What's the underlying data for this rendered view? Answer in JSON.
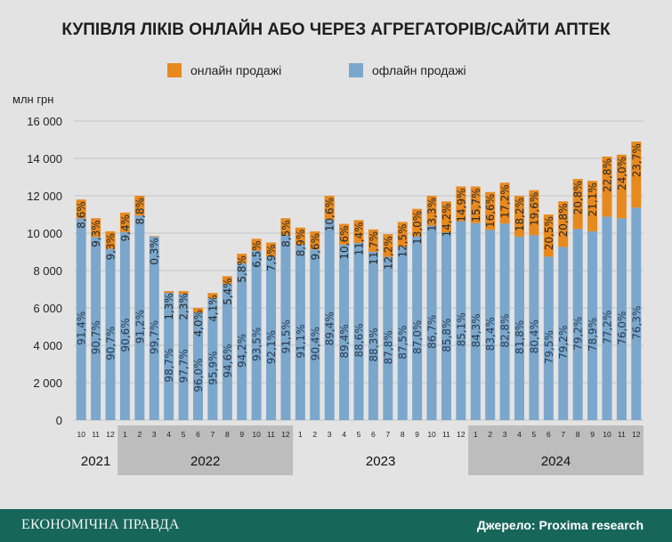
{
  "header": {
    "title": "КУПІВЛЯ ЛІКІВ ОНЛАЙН АБО ЧЕРЕЗ АГРЕГАТОРІВ/САЙТИ АПТЕК"
  },
  "footer": {
    "logo": "ЕКОНОМІЧНА ПРАВДА",
    "source": "Джерело: Proxima research"
  },
  "colors": {
    "online": "#e8891e",
    "offline": "#7ba7cc",
    "band": "#bdbdbd",
    "footer": "#17665a"
  },
  "chart_data": {
    "type": "bar",
    "stacked": true,
    "title": "КУПІВЛЯ ЛІКІВ ОНЛАЙН АБО ЧЕРЕЗ АГРЕГАТОРІВ/САЙТИ АПТЕК",
    "ylabel": "млн грн",
    "ylim": [
      0,
      16000
    ],
    "yticks": [
      0,
      2000,
      4000,
      6000,
      8000,
      10000,
      12000,
      14000,
      16000
    ],
    "ytick_labels": [
      "0",
      "2 000",
      "4 000",
      "6 000",
      "8 000",
      "10 000",
      "12 000",
      "14 000",
      "16 000"
    ],
    "grid": true,
    "legend": [
      {
        "name": "онлайн продажі",
        "key": "online"
      },
      {
        "name": "офлайн продажі",
        "key": "offline"
      }
    ],
    "legend_position": "top",
    "categories": [
      "10",
      "11",
      "12",
      "1",
      "2",
      "3",
      "4",
      "5",
      "6",
      "7",
      "8",
      "9",
      "10",
      "11",
      "12",
      "1",
      "2",
      "3",
      "4",
      "5",
      "6",
      "7",
      "8",
      "9",
      "10",
      "11",
      "12",
      "1",
      "2",
      "3",
      "4",
      "5",
      "6",
      "7",
      "8",
      "9",
      "10",
      "11",
      "12"
    ],
    "years": [
      {
        "label": "2021",
        "months": 3,
        "shaded": false
      },
      {
        "label": "2022",
        "months": 12,
        "shaded": true
      },
      {
        "label": "2023",
        "months": 12,
        "shaded": false
      },
      {
        "label": "2024",
        "months": 12,
        "shaded": true
      }
    ],
    "totals": [
      11800,
      10800,
      10100,
      11100,
      12000,
      9850,
      6900,
      6900,
      6000,
      6800,
      7700,
      8900,
      9700,
      9500,
      10800,
      10300,
      10100,
      12000,
      10500,
      10700,
      10200,
      9950,
      10600,
      11300,
      12000,
      11700,
      12500,
      12500,
      12200,
      12700,
      12000,
      12300,
      11000,
      11700,
      12900,
      12800,
      14100,
      14200,
      14900
    ],
    "online_share": [
      "8,6%",
      "9,3%",
      "9,3%",
      "9,4%",
      "8,8%",
      "0,3%",
      "1,3%",
      "2,3%",
      "4,0%",
      "4,1%",
      "5,4%",
      "5,8%",
      "6,5%",
      "7,9%",
      "8,5%",
      "8,9%",
      "9,6%",
      "10,6%",
      "10,6%",
      "11,4%",
      "11,7%",
      "12,2%",
      "12,5%",
      "13,0%",
      "13,3%",
      "14,2%",
      "14,9%",
      "15,7%",
      "16,6%",
      "17,2%",
      "18,2%",
      "19,6%",
      "20,5%",
      "20,8%",
      "20,8%",
      "21,1%",
      "22,8%",
      "24,0%",
      "23,7%"
    ],
    "offline_share": [
      "91,4%",
      "90,7%",
      "90,7%",
      "90,6%",
      "91,2%",
      "99,7%",
      "98,7%",
      "97,7%",
      "96,0%",
      "95,9%",
      "94,6%",
      "94,2%",
      "93,5%",
      "92,1%",
      "91,5%",
      "91,1%",
      "90,4%",
      "89,4%",
      "89,4%",
      "88,6%",
      "88,3%",
      "87,8%",
      "87,5%",
      "87,0%",
      "86,7%",
      "85,8%",
      "85,1%",
      "84,3%",
      "83,4%",
      "82,8%",
      "81,8%",
      "80,4%",
      "79,5%",
      "79,2%",
      "79,2%",
      "78,9%",
      "77,2%",
      "76,0%",
      "76,3%"
    ]
  }
}
